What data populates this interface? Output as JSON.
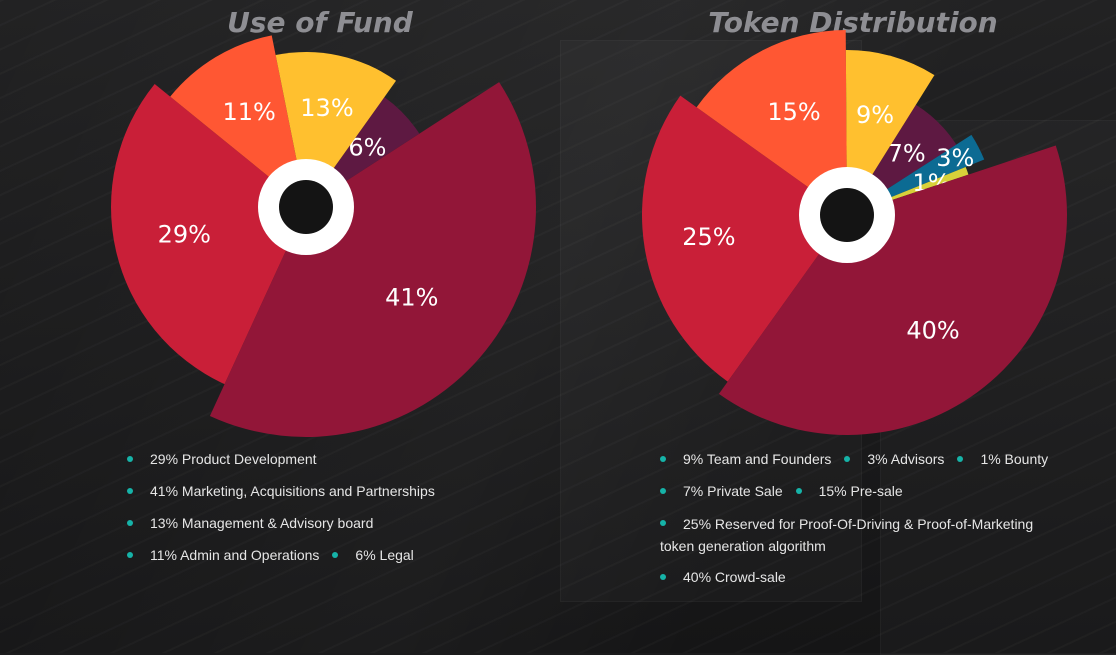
{
  "chart_data": [
    {
      "type": "pie",
      "title": "Use of Fund",
      "slices": [
        {
          "label": "6%",
          "value": 6,
          "color": "#5e1942"
        },
        {
          "label": "41%",
          "value": 41,
          "color": "#921638"
        },
        {
          "label": "29%",
          "value": 29,
          "color": "#c91f38"
        },
        {
          "label": "11%",
          "value": 11,
          "color": "#ff5733"
        },
        {
          "label": "13%",
          "value": 13,
          "color": "#ffc02f"
        }
      ],
      "legend": [
        [
          "29% Product Development"
        ],
        [
          "41% Marketing, Acquisitions and Partnerships"
        ],
        [
          "13% Management & Advisory board"
        ],
        [
          "11% Admin and Operations",
          "6% Legal"
        ]
      ]
    },
    {
      "type": "pie",
      "title": "Token Distribution",
      "slices": [
        {
          "label": "7%",
          "value": 7,
          "color": "#5e1942"
        },
        {
          "label": "3%",
          "value": 3,
          "color": "#0c6b93"
        },
        {
          "label": "1%",
          "value": 1,
          "color": "#d8d13a"
        },
        {
          "label": "40%",
          "value": 40,
          "color": "#921638"
        },
        {
          "label": "25%",
          "value": 25,
          "color": "#c91f38"
        },
        {
          "label": "15%",
          "value": 15,
          "color": "#ff5733"
        },
        {
          "label": "9%",
          "value": 9,
          "color": "#ffc02f"
        }
      ],
      "legend": [
        [
          "9% Team and Founders",
          "3% Advisors",
          "1% Bounty"
        ],
        [
          "7% Private Sale",
          "15% Pre-sale"
        ],
        [
          "25% Reserved for Proof-Of-Driving & Proof-of-Marketing token generation algorithm"
        ],
        [
          "40% Crowd-sale"
        ]
      ]
    }
  ]
}
